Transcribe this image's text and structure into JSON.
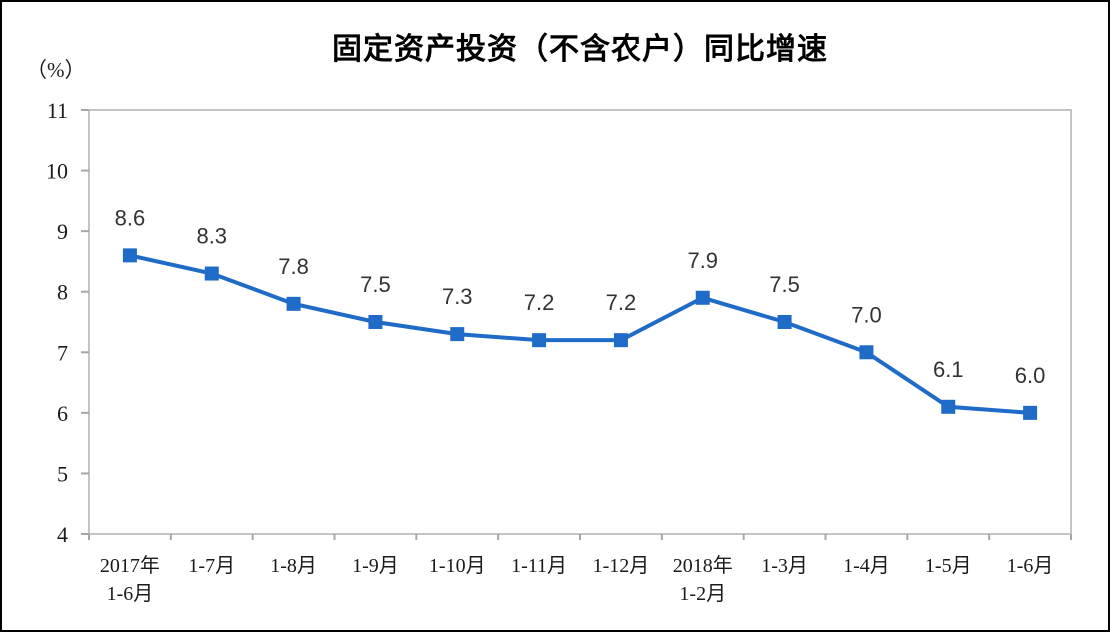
{
  "chart_data": {
    "type": "line",
    "title": "固定资产投资（不含农户）同比增速",
    "unit_label": "（%）",
    "categories": [
      [
        "2017年",
        "1-6月"
      ],
      [
        "1-7月"
      ],
      [
        "1-8月"
      ],
      [
        "1-9月"
      ],
      [
        "1-10月"
      ],
      [
        "1-11月"
      ],
      [
        "1-12月"
      ],
      [
        "2018年",
        "1-2月"
      ],
      [
        "1-3月"
      ],
      [
        "1-4月"
      ],
      [
        "1-5月"
      ],
      [
        "1-6月"
      ]
    ],
    "values": [
      8.6,
      8.3,
      7.8,
      7.5,
      7.3,
      7.2,
      7.2,
      7.9,
      7.5,
      7.0,
      6.1,
      6.0
    ],
    "data_labels": [
      "8.6",
      "8.3",
      "7.8",
      "7.5",
      "7.3",
      "7.2",
      "7.2",
      "7.9",
      "7.5",
      "7.0",
      "6.1",
      "6.0"
    ],
    "y_ticks": [
      11,
      10,
      9,
      8,
      7,
      6,
      5,
      4
    ],
    "ylim": [
      4,
      11
    ],
    "xlabel": "",
    "ylabel": "（%）",
    "grid": false,
    "legend_position": "none",
    "marker": "square",
    "colors": {
      "line": "#1f6bc8",
      "marker": "#1f6bc8",
      "plot_border": "#c4c4c4",
      "tick": "#a6a6a6",
      "axis_text": "#1a1a1a",
      "data_label_text": "#333333",
      "title_text": "#000000",
      "background": "#ffffff",
      "frame_border": "#000000"
    }
  }
}
